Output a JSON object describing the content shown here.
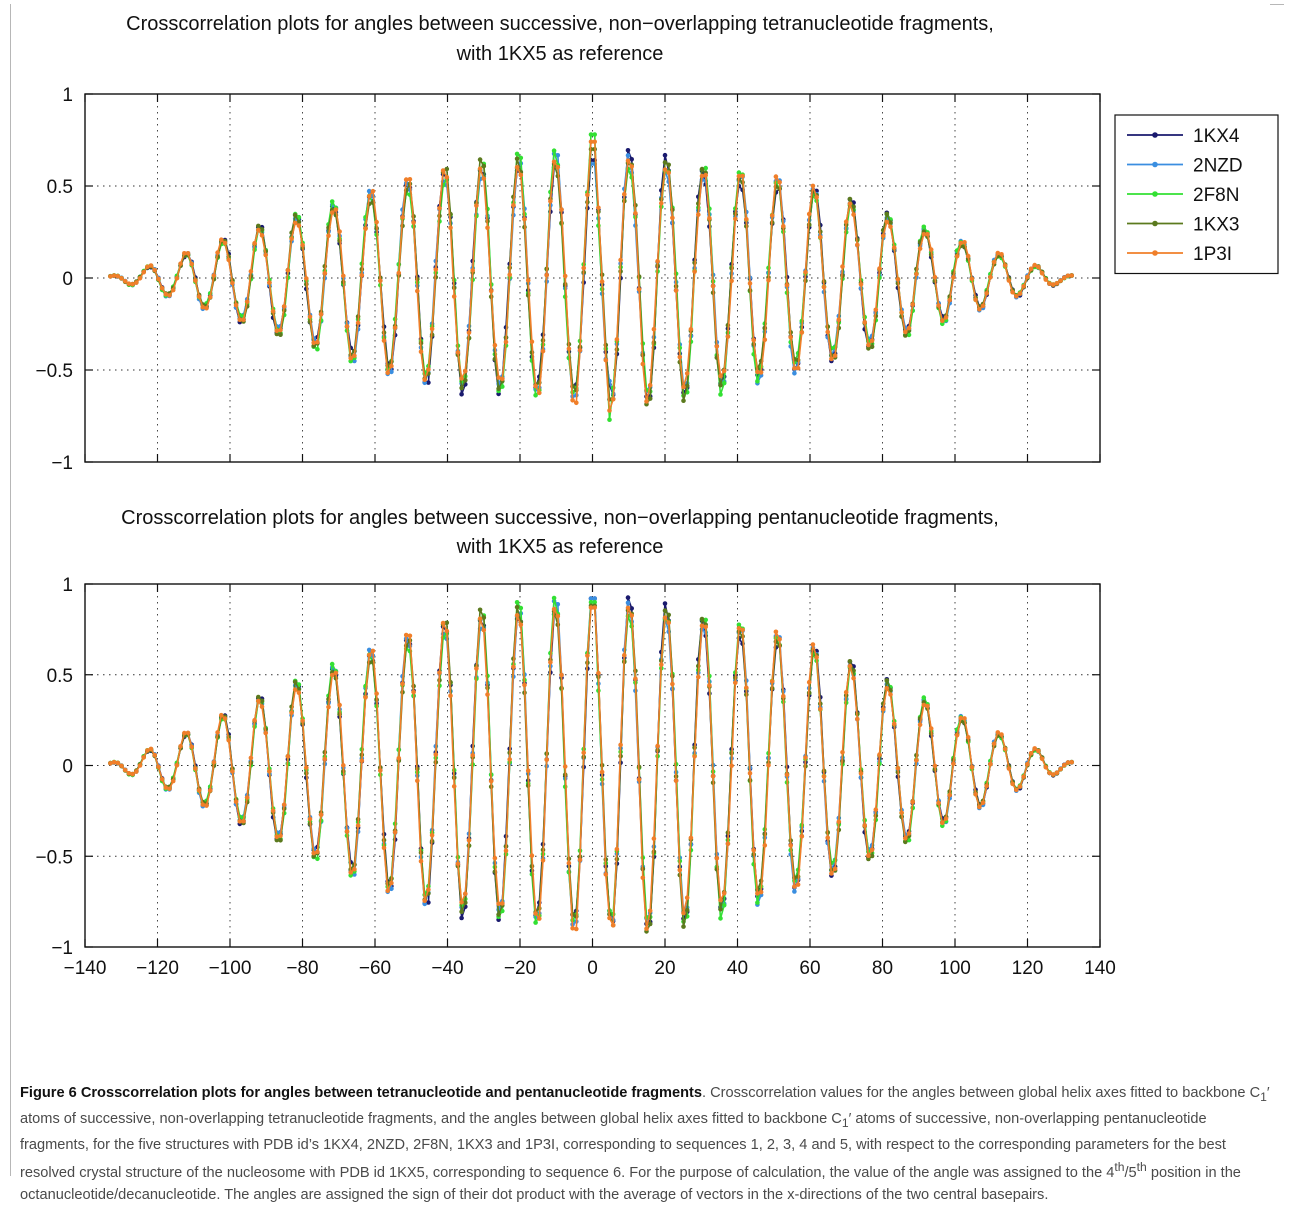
{
  "chart_data": [
    {
      "type": "line",
      "title": "Crosscorrelation plots for angles between successive, non−overlapping tetranucleotide fragments,",
      "title_line2": "with 1KX5 as reference",
      "xlabel": "",
      "ylabel": "",
      "xlim": [
        -140,
        140
      ],
      "ylim": [
        -1,
        1
      ],
      "yticks": [
        1,
        0.5,
        0,
        -0.5,
        -1
      ],
      "ytick_labels": [
        "1",
        "0.5",
        "0",
        "−0.5",
        "−1"
      ],
      "xticks": [
        -140,
        -120,
        -100,
        -80,
        -60,
        -40,
        -20,
        0,
        20,
        40,
        60,
        80,
        100,
        120,
        140
      ],
      "grid": true,
      "legend": "outside-right",
      "x_range": [
        -133,
        133
      ],
      "period": 10.2,
      "envelope_peak": 0.66,
      "series": [
        {
          "name": "1KX4",
          "color": "#1a1a6e",
          "peak_at_zero": 0.64,
          "min_near_5": -0.58
        },
        {
          "name": "2NZD",
          "color": "#3a8ee0",
          "peak_at_zero": 0.62,
          "min_near_5": -0.56
        },
        {
          "name": "2F8N",
          "color": "#33e033",
          "peak_at_zero": 0.78,
          "min_near_5": -0.77
        },
        {
          "name": "1KX3",
          "color": "#5b7a1e",
          "peak_at_zero": 0.7,
          "min_near_5": -0.66
        },
        {
          "name": "1P3I",
          "color": "#f07f2a",
          "peak_at_zero": 0.74,
          "min_near_5": -0.72
        }
      ]
    },
    {
      "type": "line",
      "title": "Crosscorrelation plots for angles between successive, non−overlapping pentanucleotide fragments,",
      "title_line2": "with 1KX5 as reference",
      "xlabel": "",
      "ylabel": "",
      "xlim": [
        -140,
        140
      ],
      "ylim": [
        -1,
        1
      ],
      "yticks": [
        1,
        0.5,
        0,
        -0.5,
        -1
      ],
      "ytick_labels": [
        "1",
        "0.5",
        "0",
        "−0.5",
        "−1"
      ],
      "xticks": [
        -140,
        -120,
        -100,
        -80,
        -60,
        -40,
        -20,
        0,
        20,
        40,
        60,
        80,
        100,
        120,
        140
      ],
      "xtick_labels": [
        "−140",
        "−120",
        "−100",
        "−80",
        "−60",
        "−40",
        "−20",
        "0",
        "20",
        "40",
        "60",
        "80",
        "100",
        "120",
        "140"
      ],
      "grid": true,
      "legend": "none",
      "x_range": [
        -133,
        133
      ],
      "period": 10.2,
      "envelope_peak": 0.9,
      "series": [
        {
          "name": "1KX4",
          "color": "#1a1a6e",
          "peak_at_zero": 0.92,
          "min_near_5": -0.8
        },
        {
          "name": "2NZD",
          "color": "#3a8ee0",
          "peak_at_zero": 0.92,
          "min_near_5": -0.82
        },
        {
          "name": "2F8N",
          "color": "#33e033",
          "peak_at_zero": 0.9,
          "min_near_5": -0.8
        },
        {
          "name": "1KX3",
          "color": "#5b7a1e",
          "peak_at_zero": 0.88,
          "min_near_5": -0.82
        },
        {
          "name": "1P3I",
          "color": "#f07f2a",
          "peak_at_zero": 0.87,
          "min_near_5": -0.84
        }
      ]
    }
  ],
  "caption": {
    "title": "Figure 6 Crosscorrelation plots for angles between tetranucleotide and pentanucleotide fragments",
    "seg1": ". Crosscorrelation values for the angles between global helix axes fitted to backbone C",
    "sub1": "1",
    "seg2": "′ atoms of successive, non-overlapping tetranucleotide fragments, and the angles between global helix axes fitted to backbone C",
    "sub2": "1",
    "seg3": "′ atoms of successive, non-overlapping pentanucleotide fragments, for the five structures with PDB id’s 1KX4, 2NZD, 2F8N, 1KX3 and 1P3I, corresponding to sequences 1, 2, 3, 4 and 5, with respect to the corresponding parameters for the best resolved crystal structure of the nucleosome with PDB id 1KX5, corresponding to sequence 6. For the purpose of calculation, the value of the angle was assigned to the 4",
    "sup1": "th",
    "seg4": "/5",
    "sup2": "th",
    "seg5": " position in the octanucleotide/decanucleotide. The angles are assigned the sign of their dot product with the average of vectors in the x-directions of the two central basepairs."
  }
}
